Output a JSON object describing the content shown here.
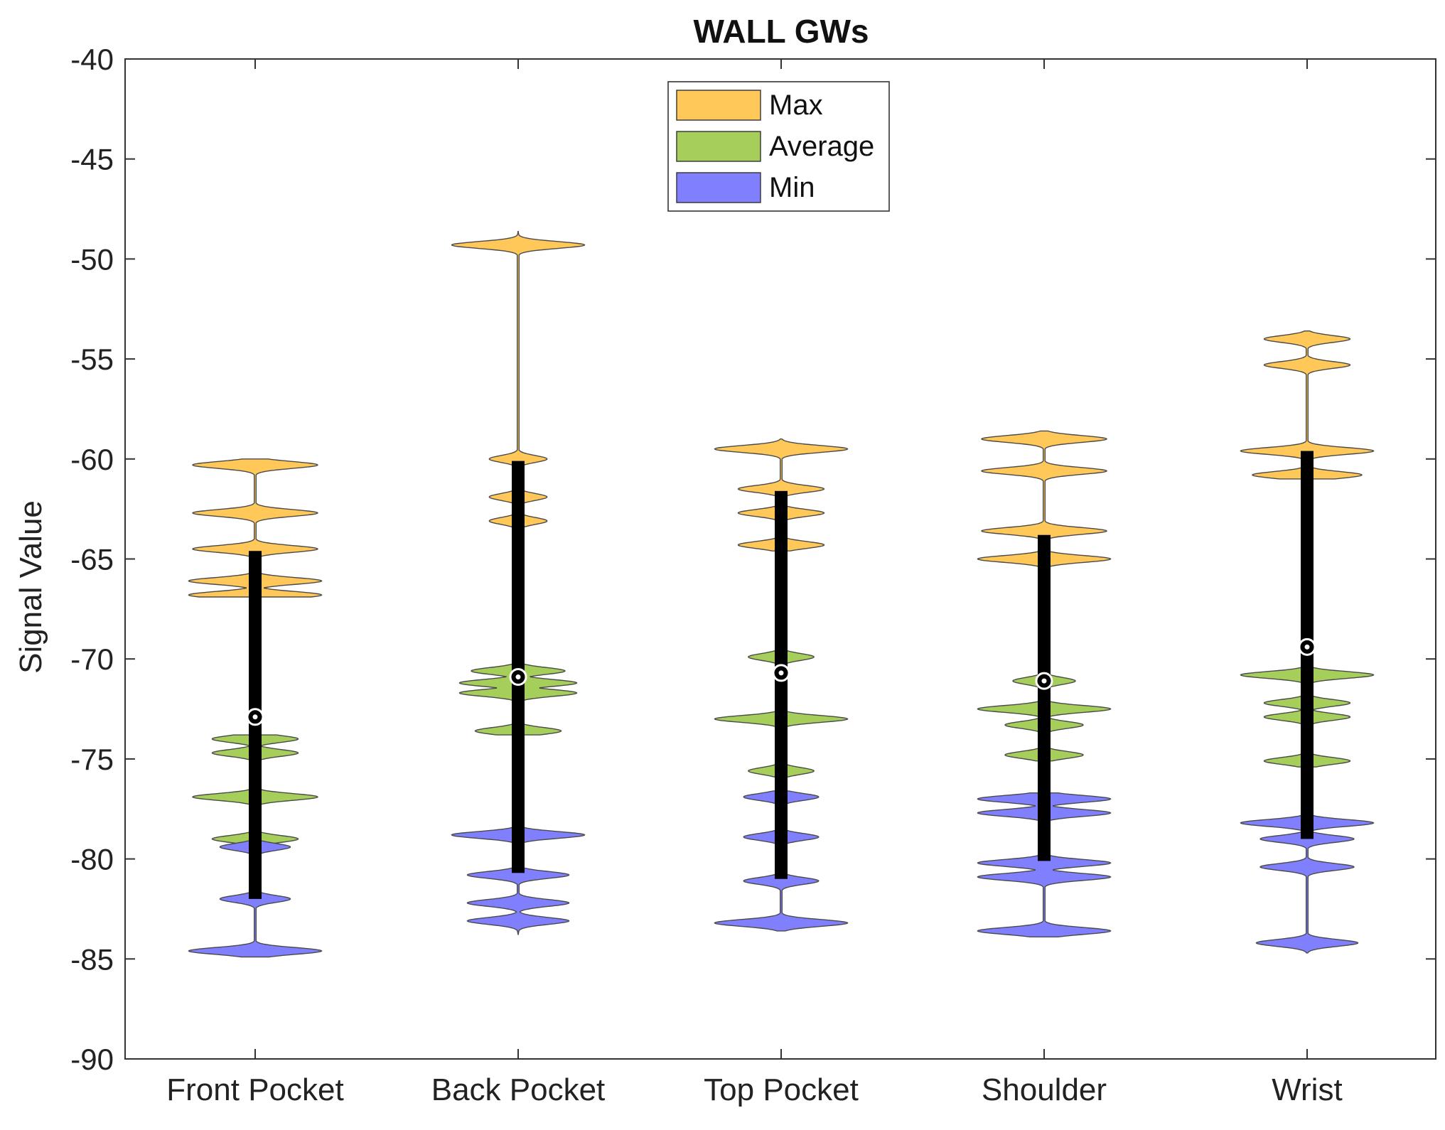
{
  "chart_data": {
    "type": "violin",
    "title": "WALL GWs",
    "xlabel": "",
    "ylabel": "Signal Value",
    "ylim": [
      -90,
      -40
    ],
    "yticks": [
      -40,
      -45,
      -50,
      -55,
      -60,
      -65,
      -70,
      -75,
      -80,
      -85,
      -90
    ],
    "categories": [
      "Front Pocket",
      "Back Pocket",
      "Top Pocket",
      "Shoulder",
      "Wrist"
    ],
    "grid": false,
    "legend_position": "top-center",
    "series": [
      {
        "name": "Max",
        "color": "#FFC859",
        "groups": [
          {
            "category": "Front Pocket",
            "modes": [
              {
                "y": -60.3,
                "w": 0.8
              },
              {
                "y": -62.7,
                "w": 0.8
              },
              {
                "y": -64.5,
                "w": 0.8
              },
              {
                "y": -66.1,
                "w": 0.85
              },
              {
                "y": -66.8,
                "w": 0.85
              }
            ],
            "low": -66.9,
            "high": -60.0
          },
          {
            "category": "Back Pocket",
            "modes": [
              {
                "y": -49.3,
                "w": 0.85
              },
              {
                "y": -60.0,
                "w": 0.37
              },
              {
                "y": -61.9,
                "w": 0.37
              },
              {
                "y": -63.1,
                "w": 0.37
              }
            ],
            "low": -63.4,
            "high": -48.6
          },
          {
            "category": "Top Pocket",
            "modes": [
              {
                "y": -59.5,
                "w": 0.85
              },
              {
                "y": -61.5,
                "w": 0.55
              },
              {
                "y": -62.7,
                "w": 0.55
              },
              {
                "y": -64.3,
                "w": 0.55
              }
            ],
            "low": -64.6,
            "high": -59.0
          },
          {
            "category": "Shoulder",
            "modes": [
              {
                "y": -59.0,
                "w": 0.8
              },
              {
                "y": -60.6,
                "w": 0.8
              },
              {
                "y": -63.6,
                "w": 0.8
              },
              {
                "y": -65.0,
                "w": 0.85
              }
            ],
            "low": -65.4,
            "high": -58.6
          },
          {
            "category": "Wrist",
            "modes": [
              {
                "y": -54.0,
                "w": 0.55
              },
              {
                "y": -55.3,
                "w": 0.55
              },
              {
                "y": -59.6,
                "w": 0.85
              },
              {
                "y": -60.8,
                "w": 0.7
              }
            ],
            "low": -61.0,
            "high": -53.6
          }
        ]
      },
      {
        "name": "Average",
        "color": "#A6CE5B",
        "groups": [
          {
            "category": "Front Pocket",
            "modes": [
              {
                "y": -74.0,
                "w": 0.55
              },
              {
                "y": -74.7,
                "w": 0.55
              },
              {
                "y": -76.9,
                "w": 0.8
              },
              {
                "y": -79.0,
                "w": 0.55
              }
            ],
            "low": -79.3,
            "high": -73.8
          },
          {
            "category": "Back Pocket",
            "modes": [
              {
                "y": -70.6,
                "w": 0.6
              },
              {
                "y": -71.2,
                "w": 0.75
              },
              {
                "y": -71.7,
                "w": 0.75
              },
              {
                "y": -73.6,
                "w": 0.55
              }
            ],
            "low": -73.8,
            "high": -70.0
          },
          {
            "category": "Top Pocket",
            "modes": [
              {
                "y": -69.9,
                "w": 0.42
              },
              {
                "y": -73.0,
                "w": 0.85
              },
              {
                "y": -75.6,
                "w": 0.42
              }
            ],
            "low": -75.9,
            "high": -69.5
          },
          {
            "category": "Shoulder",
            "modes": [
              {
                "y": -71.1,
                "w": 0.4
              },
              {
                "y": -72.5,
                "w": 0.85
              },
              {
                "y": -73.3,
                "w": 0.5
              },
              {
                "y": -74.8,
                "w": 0.5
              }
            ],
            "low": -75.1,
            "high": -70.8
          },
          {
            "category": "Wrist",
            "modes": [
              {
                "y": -70.8,
                "w": 0.85
              },
              {
                "y": -72.2,
                "w": 0.55
              },
              {
                "y": -72.9,
                "w": 0.55
              },
              {
                "y": -75.1,
                "w": 0.55
              }
            ],
            "low": -75.4,
            "high": -70.3
          }
        ]
      },
      {
        "name": "Min",
        "color": "#8080FF",
        "groups": [
          {
            "category": "Front Pocket",
            "modes": [
              {
                "y": -79.4,
                "w": 0.45
              },
              {
                "y": -82.0,
                "w": 0.45
              },
              {
                "y": -84.6,
                "w": 0.85
              }
            ],
            "low": -84.9,
            "high": -79.1
          },
          {
            "category": "Back Pocket",
            "modes": [
              {
                "y": -78.8,
                "w": 0.85
              },
              {
                "y": -80.8,
                "w": 0.65
              },
              {
                "y": -82.2,
                "w": 0.65
              },
              {
                "y": -83.1,
                "w": 0.65
              }
            ],
            "low": -83.8,
            "high": -78.1
          },
          {
            "category": "Top Pocket",
            "modes": [
              {
                "y": -76.9,
                "w": 0.48
              },
              {
                "y": -78.9,
                "w": 0.48
              },
              {
                "y": -81.1,
                "w": 0.48
              },
              {
                "y": -83.2,
                "w": 0.85
              }
            ],
            "low": -83.6,
            "high": -76.6
          },
          {
            "category": "Shoulder",
            "modes": [
              {
                "y": -77.0,
                "w": 0.85
              },
              {
                "y": -77.7,
                "w": 0.85
              },
              {
                "y": -80.2,
                "w": 0.85
              },
              {
                "y": -80.9,
                "w": 0.85
              },
              {
                "y": -83.6,
                "w": 0.85
              }
            ],
            "low": -83.9,
            "high": -76.7
          },
          {
            "category": "Wrist",
            "modes": [
              {
                "y": -78.2,
                "w": 0.85
              },
              {
                "y": -79.0,
                "w": 0.6
              },
              {
                "y": -80.4,
                "w": 0.6
              },
              {
                "y": -84.2,
                "w": 0.65
              }
            ],
            "low": -84.7,
            "high": -77.6
          }
        ]
      }
    ],
    "boxes": [
      {
        "category": "Front Pocket",
        "median": -72.9,
        "q1": -82.0,
        "q3": -64.6,
        "whisker_low": -84.9,
        "whisker_high": -60.0
      },
      {
        "category": "Back Pocket",
        "median": -70.9,
        "q1": -80.7,
        "q3": -60.1,
        "whisker_low": -83.3,
        "whisker_high": -48.6
      },
      {
        "category": "Top Pocket",
        "median": -70.7,
        "q1": -81.0,
        "q3": -61.6,
        "whisker_low": -83.2,
        "whisker_high": -59.0
      },
      {
        "category": "Shoulder",
        "median": -71.1,
        "q1": -80.1,
        "q3": -63.8,
        "whisker_low": -83.9,
        "whisker_high": -58.6
      },
      {
        "category": "Wrist",
        "median": -69.4,
        "q1": -79.0,
        "q3": -59.6,
        "whisker_low": -84.7,
        "whisker_high": -53.6
      }
    ]
  }
}
